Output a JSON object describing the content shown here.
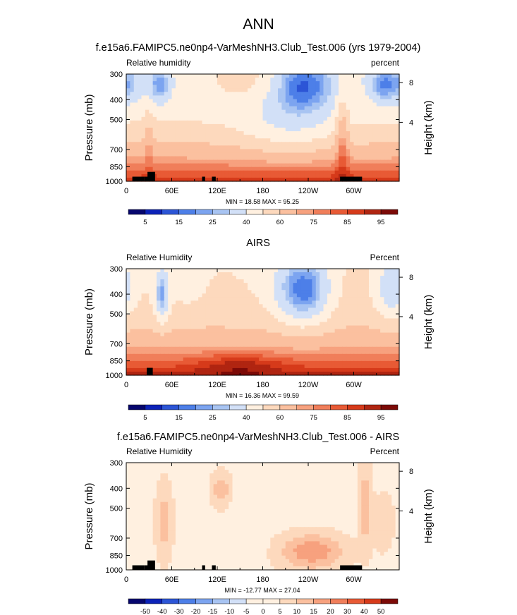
{
  "main_title": "ANN",
  "chart_data": [
    {
      "type": "heatmap",
      "title": "f.e15a6.FAMIPC5.ne0np4-VarMeshNH3.Club_Test.006 (yrs 1979-2004)",
      "left_label": "Relative humidity",
      "right_label": "percent",
      "ylabel": "Pressure (mb)",
      "ylabel_right": "Height (km)",
      "x_ticks": [
        "0",
        "60E",
        "120E",
        "180",
        "120W",
        "60W"
      ],
      "y_ticks": [
        "300",
        "400",
        "500",
        "700",
        "850",
        "1000"
      ],
      "right_ticks": [
        "8",
        "4"
      ],
      "stats": "MIN = 18.58 MAX = 95.25",
      "colorbar_labels": [
        "5",
        "15",
        "25",
        "40",
        "60",
        "75",
        "85",
        "95"
      ],
      "colorbar_colors": [
        "#06066e",
        "#0c22b8",
        "#2c55d6",
        "#4d7fe8",
        "#7ca4f0",
        "#a8c4f2",
        "#d2e0f7",
        "#fff0e0",
        "#fdd9bd",
        "#fbc09f",
        "#f7a17e",
        "#f07e5a",
        "#e85a35",
        "#d63a1a",
        "#b02511",
        "#7c0a07"
      ],
      "field": "model"
    },
    {
      "type": "heatmap",
      "title": "AIRS",
      "left_label": "Relative Humidity",
      "right_label": "Percent",
      "ylabel": "Pressure (mb)",
      "ylabel_right": "Height (km)",
      "x_ticks": [
        "0",
        "60E",
        "120E",
        "180",
        "120W",
        "60W"
      ],
      "y_ticks": [
        "300",
        "400",
        "500",
        "700",
        "850",
        "1000"
      ],
      "right_ticks": [
        "8",
        "4"
      ],
      "stats": "MIN = 16.36 MAX = 99.59",
      "colorbar_labels": [
        "5",
        "15",
        "25",
        "40",
        "60",
        "75",
        "85",
        "95"
      ],
      "colorbar_colors": [
        "#06066e",
        "#0c22b8",
        "#2c55d6",
        "#4d7fe8",
        "#7ca4f0",
        "#a8c4f2",
        "#d2e0f7",
        "#fff0e0",
        "#fdd9bd",
        "#fbc09f",
        "#f7a17e",
        "#f07e5a",
        "#e85a35",
        "#d63a1a",
        "#b02511",
        "#7c0a07"
      ],
      "field": "obs"
    },
    {
      "type": "heatmap",
      "title": "f.e15a6.FAMIPC5.ne0np4-VarMeshNH3.Club_Test.006 - AIRS",
      "left_label": "Relative Humidity",
      "right_label": "Percent",
      "ylabel": "Pressure (mb)",
      "ylabel_right": "Height (km)",
      "x_ticks": [
        "0",
        "60E",
        "120E",
        "180",
        "120W",
        "60W"
      ],
      "y_ticks": [
        "300",
        "400",
        "500",
        "700",
        "850",
        "1000"
      ],
      "right_ticks": [
        "8",
        "4"
      ],
      "stats": "MIN = -12.77 MAX = 27.04",
      "colorbar_labels": [
        "-50",
        "-40",
        "-30",
        "-20",
        "-15",
        "-10",
        "-5",
        "0",
        "5",
        "10",
        "15",
        "20",
        "30",
        "40",
        "50"
      ],
      "colorbar_colors": [
        "#06066e",
        "#0c22b8",
        "#2c55d6",
        "#4d7fe8",
        "#7ca4f0",
        "#a8c4f2",
        "#d2e0f7",
        "#fff0e0",
        "#fff0e0",
        "#fdd9bd",
        "#fbc09f",
        "#f7a17e",
        "#f07e5a",
        "#e85a35",
        "#d63a1a",
        "#7c0a07"
      ],
      "field": "diff"
    }
  ]
}
